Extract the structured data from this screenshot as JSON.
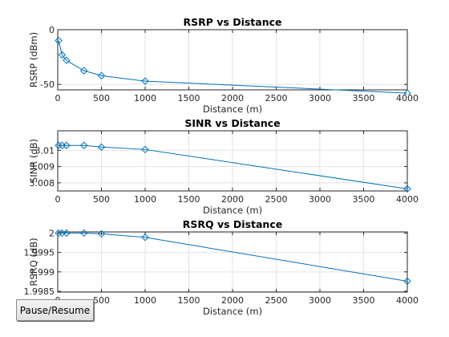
{
  "chart_data": [
    {
      "type": "line",
      "title": "RSRP vs Distance",
      "xlabel": "Distance (m)",
      "ylabel": "RSRP (dBm)",
      "xlim": [
        0,
        4000
      ],
      "ylim": [
        -55,
        0
      ],
      "xticks": [
        0,
        500,
        1000,
        1500,
        2000,
        2500,
        3000,
        3500,
        4000
      ],
      "xtick_labels": [
        "0",
        "500",
        "1000",
        "1500",
        "2000",
        "2500",
        "3000",
        "3500",
        "4000"
      ],
      "yticks": [
        -50,
        0
      ],
      "ytick_labels": [
        "-50",
        "0"
      ],
      "grid": true,
      "marker": "diamond",
      "color": "#0072bd",
      "x": [
        10,
        50,
        100,
        300,
        500,
        1000,
        4000
      ],
      "y": [
        -10,
        -23,
        -28,
        -37.5,
        -42,
        -47,
        -58
      ]
    },
    {
      "type": "line",
      "title": "SINR vs Distance",
      "xlabel": "Distance (m)",
      "ylabel": "SINR (dB)",
      "xlim": [
        0,
        4000
      ],
      "ylim": [
        3.0075,
        3.0112
      ],
      "xticks": [
        0,
        500,
        1000,
        1500,
        2000,
        2500,
        3000,
        3500,
        4000
      ],
      "xtick_labels": [
        "0",
        "500",
        "1000",
        "1500",
        "2000",
        "2500",
        "3000",
        "3500",
        "4000"
      ],
      "yticks": [
        3.008,
        3.009,
        3.01
      ],
      "ytick_labels": [
        "3.008",
        "3.009",
        "3.01"
      ],
      "grid": true,
      "marker": "diamond",
      "color": "#0072bd",
      "x": [
        10,
        50,
        100,
        300,
        500,
        1000,
        4000
      ],
      "y": [
        3.0103,
        3.0103,
        3.0103,
        3.0103,
        3.0102,
        3.01005,
        3.00763
      ]
    },
    {
      "type": "line",
      "title": "RSRQ vs Distance",
      "xlabel": "Distance (m)",
      "ylabel": "RSRQ (dB)",
      "xlim": [
        0,
        4000
      ],
      "ylim": [
        1.99848,
        2.00003
      ],
      "xticks": [
        0,
        500,
        1000,
        1500,
        2000,
        2500,
        3000,
        3500,
        4000
      ],
      "xtick_labels": [
        "0",
        "500",
        "1000",
        "1500",
        "2000",
        "2500",
        "3000",
        "3500",
        "4000"
      ],
      "yticks": [
        1.9985,
        1.999,
        1.9995,
        2
      ],
      "ytick_labels": [
        "1.9985",
        "1.999",
        "1.9995",
        "2"
      ],
      "grid": true,
      "marker": "diamond",
      "color": "#0072bd",
      "x": [
        10,
        50,
        100,
        300,
        500,
        1000,
        4000
      ],
      "y": [
        2.0,
        2.0,
        2.0,
        2.0,
        1.99998,
        1.99989,
        1.99876
      ]
    }
  ],
  "controls": {
    "pause_label": "Pause/Resume"
  }
}
